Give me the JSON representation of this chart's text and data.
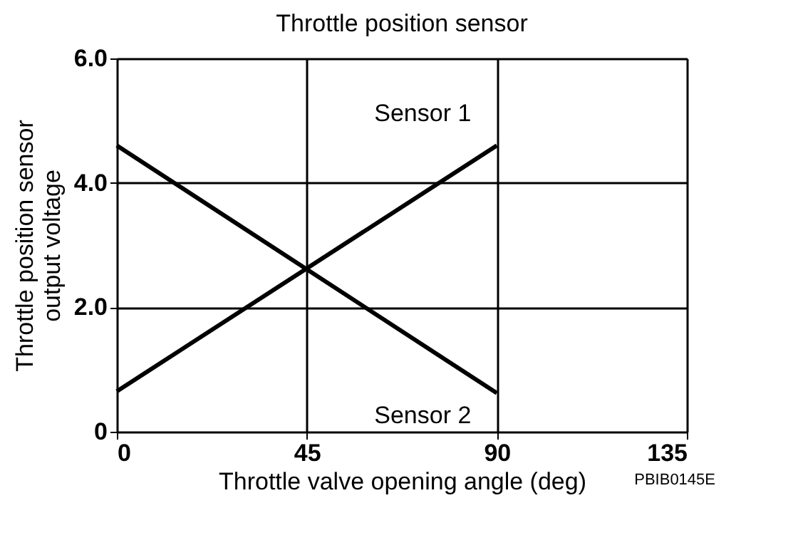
{
  "chart_data": {
    "type": "line",
    "title": "Throttle position sensor",
    "xlabel": "Throttle valve opening angle (deg)",
    "ylabel": "Throttle position sensor\noutput voltage",
    "x": [
      0,
      90
    ],
    "series": [
      {
        "name": "Sensor 1",
        "color": "#000000",
        "values": [
          0.65,
          4.6
        ]
      },
      {
        "name": "Sensor 2",
        "color": "#000000",
        "values": [
          4.6,
          0.62
        ]
      }
    ],
    "xlim": [
      0,
      135
    ],
    "xticks": [
      0,
      45,
      90,
      135
    ],
    "ylim": [
      0,
      6
    ],
    "yticks": [
      0,
      {
        "value": 2,
        "label": "2.0"
      },
      {
        "value": 4,
        "label": "4.0"
      },
      {
        "value": 6,
        "label": "6.0"
      }
    ],
    "grid": true,
    "legend": false,
    "marker": "none",
    "line_style": "solid",
    "annotations": [
      "PBIB0145E"
    ]
  }
}
